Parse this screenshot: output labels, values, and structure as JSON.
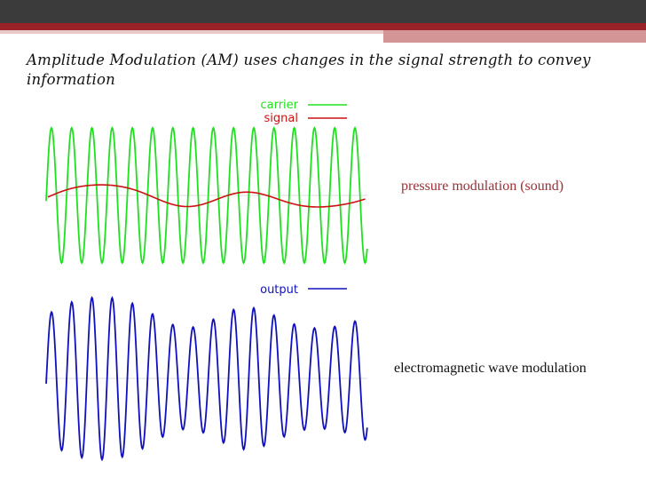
{
  "slide": {
    "title": "Amplitude Modulation (AM) uses changes in the signal strength to convey information",
    "caption_top": "pressure modulation (sound)",
    "caption_bottom": "electromagnetic wave modulation"
  },
  "legend_top": [
    {
      "label": "carrier",
      "color": "#21e021"
    },
    {
      "label": "signal",
      "color": "#cc1111"
    }
  ],
  "legend_bottom": [
    {
      "label": "output",
      "color": "#1111bb"
    }
  ],
  "colors": {
    "carrier": "#21e021",
    "signal": "#cc1111",
    "output": "#1111bb",
    "bar_dark": "#3b3b3b",
    "bar_red": "#9b2129"
  }
}
